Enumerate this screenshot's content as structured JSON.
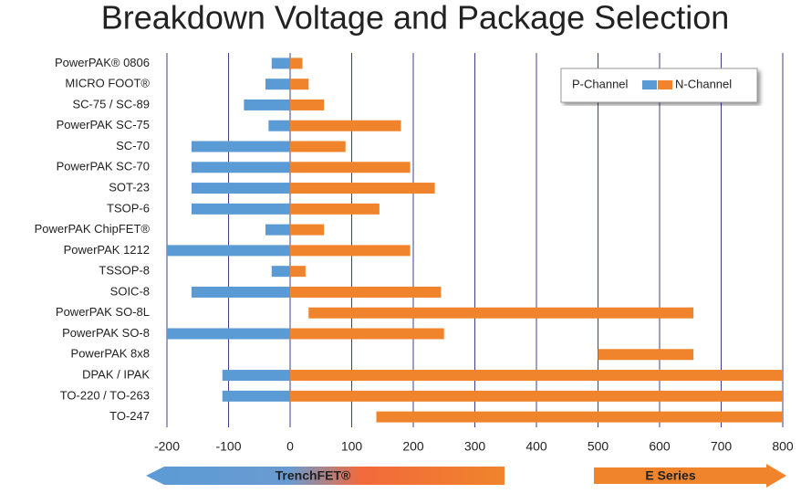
{
  "chart_data": {
    "type": "range-bar",
    "title": "Breakdown Voltage and Package Selection",
    "categories": [
      "PowerPAK® 0806",
      "MICRO FOOT®",
      "SC-75 / SC-89",
      "PowerPAK SC-75",
      "SC-70",
      "PowerPAK SC-70",
      "SOT-23",
      "TSOP-6",
      "PowerPAK ChipFET®",
      "PowerPAK 1212",
      "TSSOP-8",
      "SOIC-8",
      "PowerPAK SO-8L",
      "PowerPAK SO-8",
      "PowerPAK 8x8",
      "DPAK / IPAK",
      "TO-220 / TO-263",
      "TO-247"
    ],
    "series": [
      {
        "name": "P-Channel",
        "color": "#5b9bd5",
        "values": [
          -30,
          -40,
          -75,
          -35,
          -160,
          -160,
          -160,
          -160,
          -40,
          -200,
          -30,
          -160,
          null,
          -200,
          null,
          -110,
          -110,
          null
        ]
      },
      {
        "name": "N-Channel",
        "color": "#f0842c",
        "base": [
          0,
          0,
          0,
          0,
          0,
          0,
          0,
          0,
          0,
          0,
          0,
          0,
          30,
          0,
          500,
          0,
          0,
          140
        ],
        "values": [
          20,
          30,
          55,
          180,
          90,
          195,
          235,
          145,
          55,
          195,
          25,
          245,
          655,
          250,
          655,
          800,
          800,
          800
        ]
      }
    ],
    "xlim": [
      -200,
      800
    ],
    "xticks": [
      -200,
      -100,
      0,
      100,
      200,
      300,
      400,
      500,
      600,
      700,
      800
    ],
    "grid": true,
    "legend": "upper right",
    "annotations": [
      "TrenchFET®",
      "E Series"
    ]
  }
}
